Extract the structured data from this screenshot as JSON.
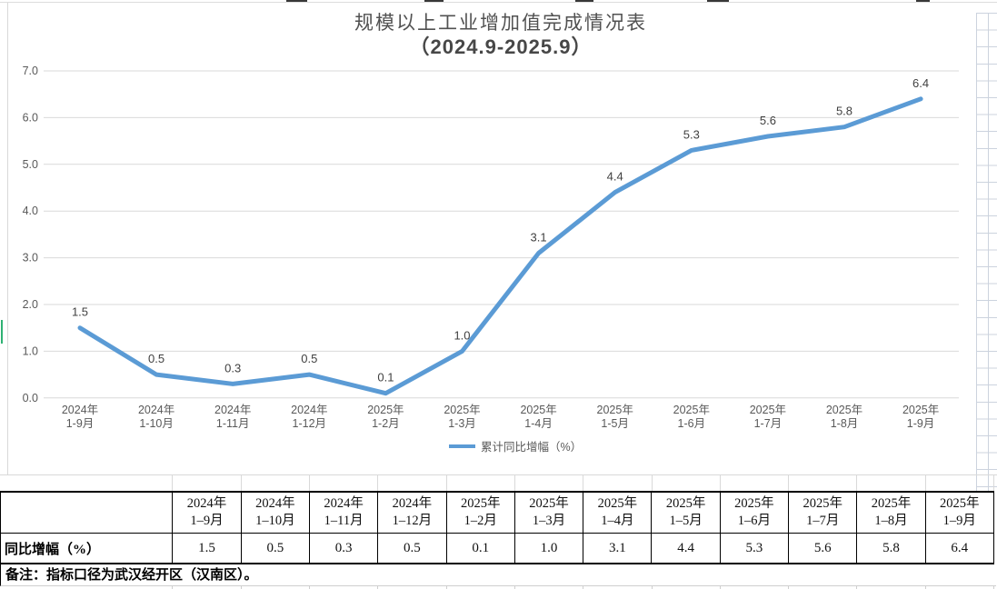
{
  "chart_data": {
    "type": "line",
    "title": "规模以上工业增加值完成情况表",
    "subtitle": "（2024.9-2025.9）",
    "legend": "累计同比增幅（%）",
    "legend_position": "bottom",
    "grid": true,
    "ylim": [
      0.0,
      7.0
    ],
    "ytick_step": 1.0,
    "ytick_decimals": 1,
    "line_color": "#5B9BD5",
    "categories": [
      {
        "line1": "2024年",
        "line2": "1-9月"
      },
      {
        "line1": "2024年",
        "line2": "1-10月"
      },
      {
        "line1": "2024年",
        "line2": "1-11月"
      },
      {
        "line1": "2024年",
        "line2": "1-12月"
      },
      {
        "line1": "2025年",
        "line2": "1-2月"
      },
      {
        "line1": "2025年",
        "line2": "1-3月"
      },
      {
        "line1": "2025年",
        "line2": "1-4月"
      },
      {
        "line1": "2025年",
        "line2": "1-5月"
      },
      {
        "line1": "2025年",
        "line2": "1-6月"
      },
      {
        "line1": "2025年",
        "line2": "1-7月"
      },
      {
        "line1": "2025年",
        "line2": "1-8月"
      },
      {
        "line1": "2025年",
        "line2": "1-9月"
      }
    ],
    "values": [
      1.5,
      0.5,
      0.3,
      0.5,
      0.1,
      1.0,
      3.1,
      4.4,
      5.3,
      5.6,
      5.8,
      6.4
    ],
    "data_labels": [
      "1.5",
      "0.5",
      "0.3",
      "0.5",
      "0.1",
      "1.0",
      "3.1",
      "4.4",
      "5.3",
      "5.6",
      "5.8",
      "6.4"
    ]
  },
  "table": {
    "row_label": "同比增幅（%）",
    "columns": [
      {
        "line1": "2024年",
        "line2": "1–9月"
      },
      {
        "line1": "2024年",
        "line2": "1–10月"
      },
      {
        "line1": "2024年",
        "line2": "1–11月"
      },
      {
        "line1": "2024年",
        "line2": "1–12月"
      },
      {
        "line1": "2025年",
        "line2": "1–2月"
      },
      {
        "line1": "2025年",
        "line2": "1–3月"
      },
      {
        "line1": "2025年",
        "line2": "1–4月"
      },
      {
        "line1": "2025年",
        "line2": "1–5月"
      },
      {
        "line1": "2025年",
        "line2": "1–6月"
      },
      {
        "line1": "2025年",
        "line2": "1–7月"
      },
      {
        "line1": "2025年",
        "line2": "1–8月"
      },
      {
        "line1": "2025年",
        "line2": "1–9月"
      }
    ],
    "values": [
      "1.5",
      "0.5",
      "0.3",
      "0.5",
      "0.1",
      "1.0",
      "3.1",
      "4.4",
      "5.3",
      "5.6",
      "5.8",
      "6.4"
    ]
  },
  "note": {
    "text": "备注：指标口径为武汉经开区（汉南区）。"
  },
  "colors": {
    "line": "#5B9BD5",
    "gridline": "#d9d9d9",
    "axis_text": "#595959",
    "data_label_text": "#404040",
    "sheet_grid": "#ccd3de",
    "selection_marker_green": "#2fb173"
  }
}
